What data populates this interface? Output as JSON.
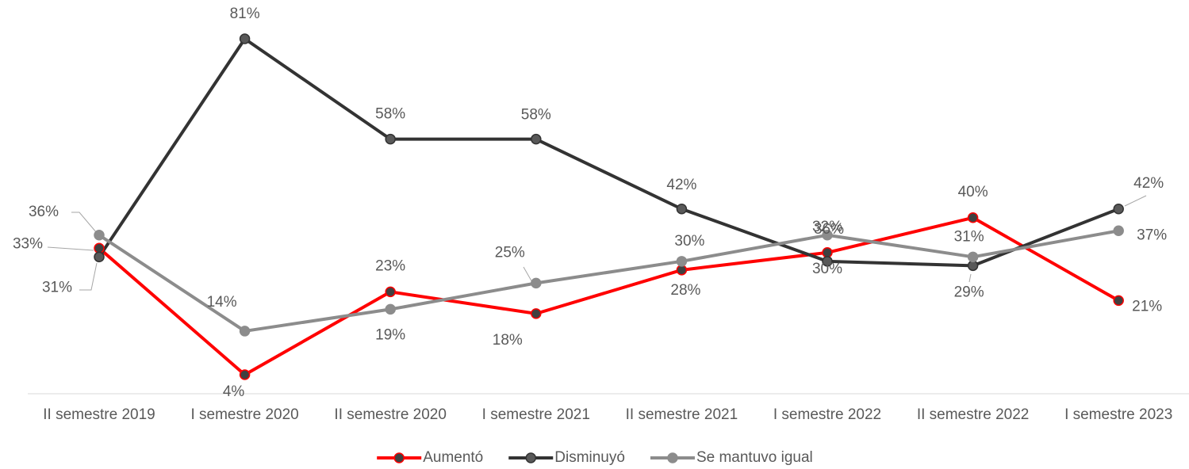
{
  "chart_data": {
    "type": "line",
    "categories": [
      "II semestre 2019",
      "I semestre 2020",
      "II semestre 2020",
      "I semestre 2021",
      "II semestre 2021",
      "I semestre 2022",
      "II semestre 2022",
      "I semestre 2023"
    ],
    "series": [
      {
        "name": "Aumentó",
        "color": "#ff0000",
        "marker_color": "#404040",
        "values": [
          33,
          4,
          23,
          18,
          28,
          32,
          40,
          21
        ],
        "value_labels": [
          "33%",
          "4%",
          "23%",
          "18%",
          "28%",
          "32%",
          "40%",
          "21%"
        ]
      },
      {
        "name": "Disminuyó",
        "color": "#333333",
        "marker_color": "#595959",
        "values": [
          31,
          81,
          58,
          58,
          42,
          30,
          29,
          42
        ],
        "value_labels": [
          "31%",
          "81%",
          "58%",
          "58%",
          "42%",
          "30%",
          "29%",
          "42%"
        ]
      },
      {
        "name": "Se mantuvo igual",
        "color": "#8c8c8c",
        "marker_color": "#8c8c8c",
        "values": [
          36,
          14,
          19,
          25,
          30,
          36,
          31,
          37
        ],
        "value_labels": [
          "36%",
          "14%",
          "19%",
          "25%",
          "30%",
          "36%",
          "31%",
          "37%"
        ]
      }
    ],
    "ylim": [
      0,
      85
    ],
    "legend": "bottom"
  }
}
